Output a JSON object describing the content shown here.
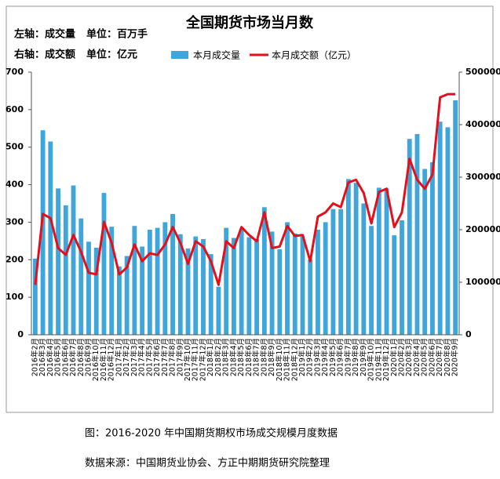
{
  "chart_data": {
    "type": "bar_line",
    "title": "全国期货市场当月数",
    "left_axis_note": [
      "左轴：成交量",
      "单位：百万手"
    ],
    "right_axis_note": [
      "右轴：成交额",
      "单位：亿元"
    ],
    "caption": "图：2016-2020 年中国期货期权市场成交规模月度数据",
    "source": "数据来源：中国期货业协会、方正中期期货研究院整理",
    "categories": [
      "2016年2月",
      "2016年3月",
      "2016年4月",
      "2016年5月",
      "2016年6月",
      "2016年7月",
      "2016年8月",
      "2016年9月",
      "2016年10月",
      "2016年11月",
      "2016年12月",
      "2017年1月",
      "2017年2月",
      "2017年3月",
      "2017年4月",
      "2017年5月",
      "2017年6月",
      "2017年7月",
      "2017年8月",
      "2017年9月",
      "2017年10月",
      "2017年11月",
      "2017年12月",
      "2018年1月",
      "2018年2月",
      "2018年3月",
      "2018年4月",
      "2018年5月",
      "2018年6月",
      "2018年7月",
      "2018年8月",
      "2018年9月",
      "2018年10月",
      "2018年11月",
      "2018年12月",
      "2019年1月",
      "2019年2月",
      "2019年3月",
      "2019年4月",
      "2019年5月",
      "2019年6月",
      "2019年7月",
      "2019年8月",
      "2019年9月",
      "2019年10月",
      "2019年11月",
      "2019年12月",
      "2020年1月",
      "2020年2月",
      "2020年3月",
      "2020年4月",
      "2020年5月",
      "2020年6月",
      "2020年7月",
      "2020年8月",
      "2020年9月"
    ],
    "series": [
      {
        "name": "本月成交量",
        "type": "bar",
        "axis": "y",
        "color": "#3ea6db",
        "values": [
          203,
          545,
          515,
          390,
          345,
          398,
          310,
          248,
          232,
          378,
          288,
          182,
          210,
          290,
          235,
          280,
          285,
          300,
          322,
          268,
          230,
          262,
          255,
          215,
          128,
          285,
          258,
          282,
          260,
          255,
          340,
          275,
          228,
          300,
          270,
          262,
          200,
          280,
          300,
          335,
          335,
          415,
          405,
          350,
          290,
          392,
          390,
          265,
          305,
          522,
          535,
          442,
          460,
          568,
          553,
          625
        ]
      },
      {
        "name": "本月成交额（亿元）",
        "type": "line",
        "axis": "y2",
        "color": "#e3101b",
        "values": [
          95000,
          230000,
          222000,
          165000,
          152000,
          190000,
          158000,
          118000,
          115000,
          215000,
          175000,
          115000,
          128000,
          172000,
          140000,
          155000,
          152000,
          172000,
          205000,
          175000,
          135000,
          178000,
          168000,
          140000,
          95000,
          178000,
          165000,
          205000,
          190000,
          178000,
          233000,
          165000,
          168000,
          207000,
          188000,
          190000,
          140000,
          225000,
          233000,
          250000,
          243000,
          290000,
          295000,
          270000,
          212000,
          272000,
          278000,
          205000,
          233000,
          335000,
          295000,
          278000,
          305000,
          452000,
          458000,
          458000
        ]
      }
    ],
    "ylim": [
      0,
      700
    ],
    "yticks": [
      0,
      100,
      200,
      300,
      400,
      500,
      600,
      700
    ],
    "y2lim": [
      0,
      500000
    ],
    "y2ticks": [
      0,
      100000,
      200000,
      300000,
      400000,
      500000
    ],
    "grid": false
  }
}
